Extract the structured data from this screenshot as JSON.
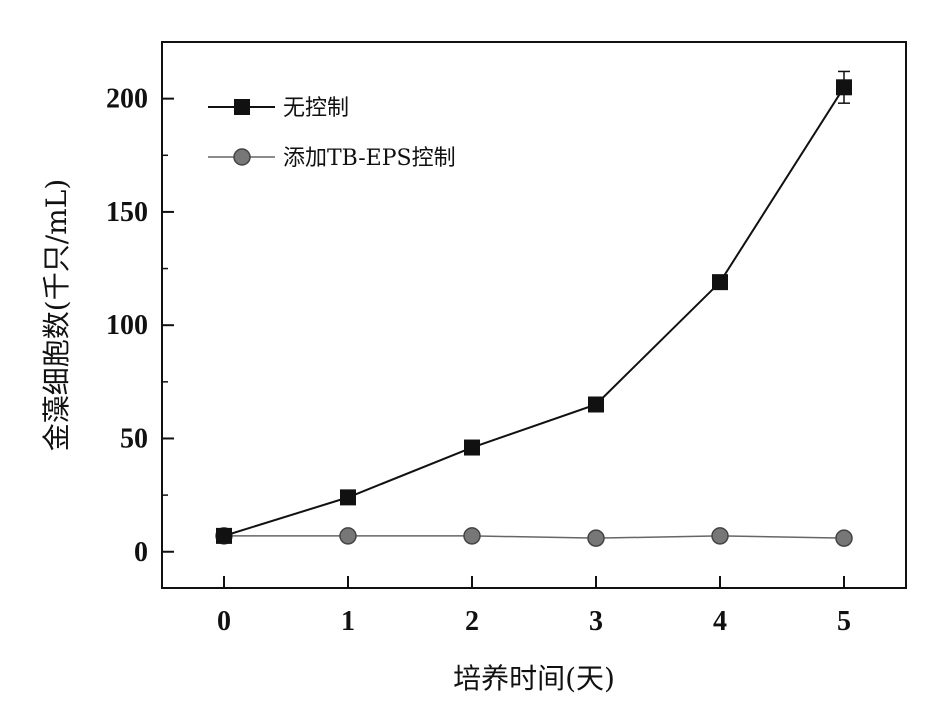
{
  "chart_data": {
    "type": "line",
    "title": "",
    "xlabel": "培养时间(天)",
    "ylabel": "金藻细胞数(千只/mL)",
    "x": [
      0,
      1,
      2,
      3,
      4,
      5
    ],
    "xlim": [
      -0.5,
      5.5
    ],
    "ylim": [
      -16,
      225
    ],
    "xticks": [
      0,
      1,
      2,
      3,
      4,
      5
    ],
    "yticks": [
      0,
      50,
      100,
      150,
      200
    ],
    "xtick_labels": [
      "0",
      "1",
      "2",
      "3",
      "4",
      "5"
    ],
    "ytick_labels": [
      "0",
      "50",
      "100",
      "150",
      "200"
    ],
    "grid": false,
    "legend_position": "top-left",
    "series": [
      {
        "name": "无控制",
        "marker": "square",
        "color": "#111111",
        "values": [
          7,
          24,
          46,
          65,
          119,
          205
        ],
        "errors": [
          0,
          0,
          0,
          0,
          0,
          7
        ]
      },
      {
        "name": "添加TB-EPS控制",
        "marker": "circle",
        "color": "#555555",
        "values": [
          7,
          7,
          7,
          6,
          7,
          6
        ],
        "errors": [
          0,
          0,
          0,
          0,
          0,
          0
        ]
      }
    ]
  }
}
